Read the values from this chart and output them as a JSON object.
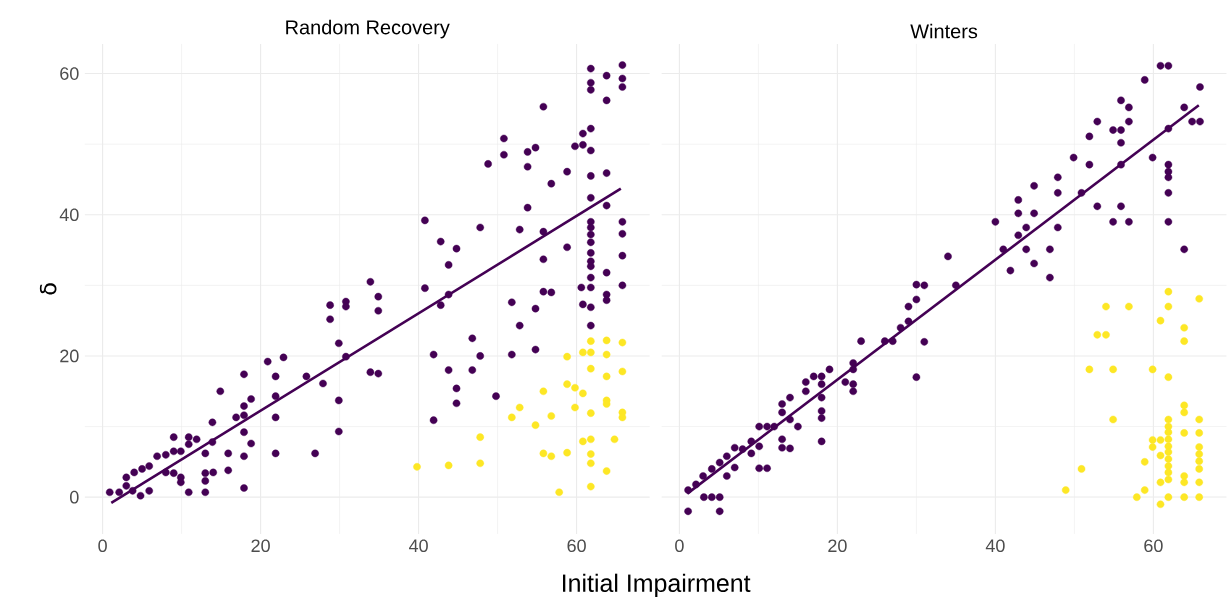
{
  "chart_data": [
    {
      "type": "scatter",
      "title": "Random Recovery",
      "xlabel": "Initial Impairment",
      "ylabel": "δ",
      "xlim": [
        -2.25,
        69.25
      ],
      "ylim": [
        -5.2,
        64.2
      ],
      "xticks": [
        0,
        20,
        40,
        60
      ],
      "yticks": [
        0,
        20,
        40,
        60
      ],
      "grid": true,
      "series": [
        {
          "marker": "circle",
          "color": "#440154",
          "x": [
            0.9,
            2.1,
            3,
            3.8,
            4.8,
            5.9,
            3,
            4,
            5,
            5.9,
            6.9,
            8,
            9,
            9.9,
            9,
            10.9,
            11.9,
            10.9,
            8,
            9,
            9.9,
            9.9,
            10.9,
            13,
            13,
            13,
            14,
            15.9,
            13,
            13.9,
            13.9,
            15.9,
            14.9,
            17.9,
            17.9,
            16.9,
            17.9,
            18.8,
            17.9,
            18.8,
            17.9,
            17.9,
            20.9,
            22.9,
            21.9,
            21.9,
            21.9,
            21.9,
            25.8,
            27.9,
            26.9,
            28.8,
            28.8,
            30.8,
            30.8,
            29.9,
            30.8,
            29.9,
            29.9,
            33.9,
            34.9,
            34.9,
            33.9,
            34.9,
            40.8,
            40.8,
            42.8,
            44.8,
            43.8,
            43.8,
            42.8,
            41.9,
            43.8,
            44.8,
            44.8,
            41.9,
            46.8,
            47.8,
            46.8,
            47.8,
            61.8,
            61.8,
            61.8,
            63.8,
            65.8,
            65.8,
            65.8,
            63.8,
            55.8,
            61.8,
            60.8,
            59.8,
            60.8,
            61.8,
            50.8,
            50.8,
            53.8,
            54.8,
            53.8,
            48.8,
            58.8,
            61.8,
            63.8,
            56.8,
            61.8,
            63.8,
            53.8,
            52.8,
            55.8,
            58.8,
            55.8,
            61.8,
            61.8,
            61.8,
            61.8,
            61.8,
            61.8,
            61.8,
            61.8,
            60.6,
            61.8,
            63.8,
            65.8,
            65.8,
            65.8,
            65.8,
            63.8,
            63.8,
            60.8,
            61.8,
            61.8,
            55.8,
            56.8,
            51.8,
            54.8,
            52.8,
            54.8,
            51.8,
            49.8
          ],
          "values": [
            0.7,
            0.7,
            1.6,
            0.9,
            0.2,
            0.9,
            2.8,
            3.5,
            4,
            4.4,
            5.8,
            6,
            6.5,
            6.5,
            8.5,
            8.5,
            8.2,
            7.5,
            3.5,
            3.4,
            2.8,
            2.1,
            0.7,
            0.7,
            2.3,
            3.4,
            3.5,
            3.8,
            6.2,
            7.8,
            10.6,
            6.2,
            15,
            17.4,
            12.9,
            11.3,
            11.6,
            13.9,
            9.2,
            7.6,
            5.8,
            1.3,
            19.2,
            19.8,
            17.1,
            14.3,
            11.3,
            6.2,
            17.1,
            16.1,
            6.2,
            27.2,
            25.2,
            27.7,
            27,
            21.8,
            19.9,
            13.7,
            9.3,
            30.5,
            28.4,
            26.4,
            17.7,
            17.5,
            39.2,
            29.6,
            36.2,
            35.2,
            32.9,
            28.7,
            27.2,
            20.2,
            18,
            15.4,
            13.3,
            10.9,
            22.5,
            20,
            18,
            38.2,
            60.7,
            58.7,
            57.7,
            59.7,
            61.2,
            59.3,
            58.1,
            56.2,
            55.3,
            52.2,
            51.5,
            49.7,
            49.9,
            49.1,
            50.8,
            48.5,
            48.9,
            49.5,
            46.8,
            47.2,
            46.1,
            45.5,
            45.9,
            44.4,
            42.4,
            41.3,
            41,
            37.9,
            37.6,
            35.4,
            33.7,
            39,
            38.2,
            37.2,
            36.1,
            34.6,
            33.4,
            32.7,
            31.1,
            29.7,
            29.7,
            31.8,
            39,
            37.3,
            34.2,
            30,
            28.7,
            27.9,
            27.3,
            26.9,
            24.3,
            29.1,
            29,
            27.6,
            26.7,
            24.3,
            20.9,
            20.2,
            14.3
          ]
        },
        {
          "marker": "circle",
          "color": "#fde725",
          "x": [
            39.8,
            43.8,
            47.8,
            47.8,
            61.8,
            63.8,
            65.8,
            60.8,
            61.8,
            63.8,
            58.8,
            61.8,
            63.8,
            65.8,
            58.8,
            59.8,
            60.8,
            55.8,
            59.8,
            63.8,
            63.8,
            65.8,
            65.8,
            61.8,
            52.8,
            51.8,
            56.8,
            54.8,
            55.8,
            56.8,
            58.8,
            60.8,
            61.8,
            61.8,
            61.8,
            63.8,
            64.8,
            57.8,
            61.8
          ],
          "values": [
            4.3,
            4.5,
            4.8,
            8.5,
            22.1,
            22.2,
            21.9,
            20.5,
            20.5,
            20.2,
            19.9,
            18.2,
            17.1,
            17.8,
            16,
            15.5,
            14.7,
            15,
            12.7,
            13.7,
            13.2,
            12,
            11.3,
            11.9,
            12.7,
            11.3,
            11.5,
            10.2,
            6.2,
            5.8,
            6.3,
            7.9,
            8.2,
            6.1,
            4.8,
            3.7,
            8.2,
            0.7,
            1.5
          ]
        },
        {
          "type": "line",
          "marker": "none",
          "color": "#440154",
          "x": [
            1.1,
            65.6
          ],
          "values": [
            -0.8,
            43.7
          ]
        }
      ]
    },
    {
      "type": "scatter",
      "title": "Winters",
      "xlim": [
        -2.25,
        69.25
      ],
      "ylim": [
        -5.2,
        64.2
      ],
      "xticks": [
        0,
        20,
        40,
        60
      ],
      "yticks": [
        0,
        20,
        40,
        60
      ],
      "grid": true,
      "tick_labels": "x",
      "series": [
        {
          "marker": "circle",
          "color": "#440154",
          "x": [
            1.1,
            5.1,
            1.1,
            2.1,
            3.1,
            4.1,
            5.1,
            3,
            4.1,
            5.1,
            6,
            6,
            7,
            7,
            8,
            9.1,
            9.1,
            10.1,
            11.1,
            10.1,
            10.1,
            11.1,
            12,
            13,
            14,
            13,
            14,
            15,
            13,
            13,
            14,
            16,
            16,
            17,
            18,
            19,
            18,
            18,
            18,
            18,
            18,
            21,
            22,
            22,
            22,
            22,
            23,
            26,
            27,
            28,
            29,
            29,
            30,
            30,
            30,
            31,
            31,
            35,
            34,
            40,
            41,
            41.9,
            42.9,
            42.9,
            43.9,
            42.9,
            43.9,
            44.9,
            44.9,
            44.9,
            46.9,
            46.9,
            47.9,
            47.9,
            47.9,
            49.9,
            50.9,
            51.9,
            51.9,
            52.9,
            52.9,
            54.9,
            55.9,
            55.9,
            55.9,
            56.9,
            56.9,
            55.9,
            55.9,
            54.9,
            56.9,
            58.9,
            59.9,
            60.9,
            61.9,
            61.9,
            61.9,
            61.9,
            61.9,
            61.9,
            61.9,
            63.9,
            63.9,
            64.9,
            65.9,
            65.9
          ],
          "values": [
            -2,
            -2,
            1,
            1.8,
            0,
            0,
            0,
            3,
            4,
            4.9,
            5.8,
            3,
            4.2,
            7,
            6.8,
            7.9,
            6.2,
            10,
            10,
            7.2,
            4.1,
            4.1,
            10,
            13.2,
            14.1,
            12,
            11,
            10,
            8.2,
            7,
            6.9,
            16.3,
            15,
            17.1,
            17.1,
            18.1,
            16,
            14.1,
            12.2,
            11.2,
            7.9,
            16.3,
            19,
            18.1,
            16,
            15,
            22.1,
            22.1,
            22.1,
            24,
            24.9,
            27,
            28,
            30.1,
            17,
            22,
            30,
            30,
            34.1,
            39,
            35.1,
            32.1,
            42.1,
            40.2,
            38.2,
            37.1,
            35.1,
            44.1,
            40.2,
            33.1,
            35.1,
            31.1,
            45.3,
            43.1,
            38.2,
            48.1,
            43.1,
            51.1,
            47.1,
            53.2,
            41.2,
            52,
            52,
            50.2,
            56.2,
            55.2,
            53.2,
            47.1,
            41.2,
            39,
            39,
            59.1,
            48.1,
            61.1,
            61.1,
            52.2,
            47.1,
            46.1,
            45.3,
            43.1,
            39,
            55.2,
            35.1,
            53.2,
            53.2,
            58.1
          ]
        },
        {
          "marker": "circle",
          "color": "#fde725",
          "x": [
            61.9,
            61.9,
            65.8,
            54,
            56.9,
            60.9,
            63.9,
            63.9,
            52.9,
            54,
            51.9,
            54.9,
            59.9,
            61.9,
            54.9,
            63.9,
            63.9,
            61.9,
            65.8,
            61.9,
            61.9,
            61.9,
            61.9,
            61.9,
            61.9,
            61.9,
            61.9,
            61.9,
            59.9,
            60.9,
            59.9,
            60.9,
            63.9,
            65.8,
            65.8,
            65.8,
            65.8,
            65.8,
            58.9,
            63.9,
            63.9,
            65.8,
            60.9,
            61.9,
            63.9,
            65.8,
            57.9,
            58.9,
            60.9,
            50.9,
            48.9
          ],
          "values": [
            29.1,
            27,
            28.1,
            27,
            27,
            25,
            24,
            22.1,
            23,
            23,
            18.1,
            18.1,
            18.1,
            17,
            11,
            13,
            12,
            11,
            11,
            10,
            9.2,
            8.2,
            7.2,
            6.4,
            5.4,
            4.4,
            3.5,
            2.5,
            8.1,
            8.1,
            7.1,
            5.9,
            9.1,
            9.1,
            7.1,
            6.1,
            5.1,
            4,
            5,
            3,
            2.1,
            2.1,
            2.1,
            0,
            0,
            0,
            0,
            1,
            -1,
            4,
            1
          ]
        },
        {
          "type": "line",
          "marker": "none",
          "color": "#440154",
          "x": [
            1,
            65.75
          ],
          "values": [
            0.5,
            55.5
          ]
        }
      ]
    }
  ]
}
